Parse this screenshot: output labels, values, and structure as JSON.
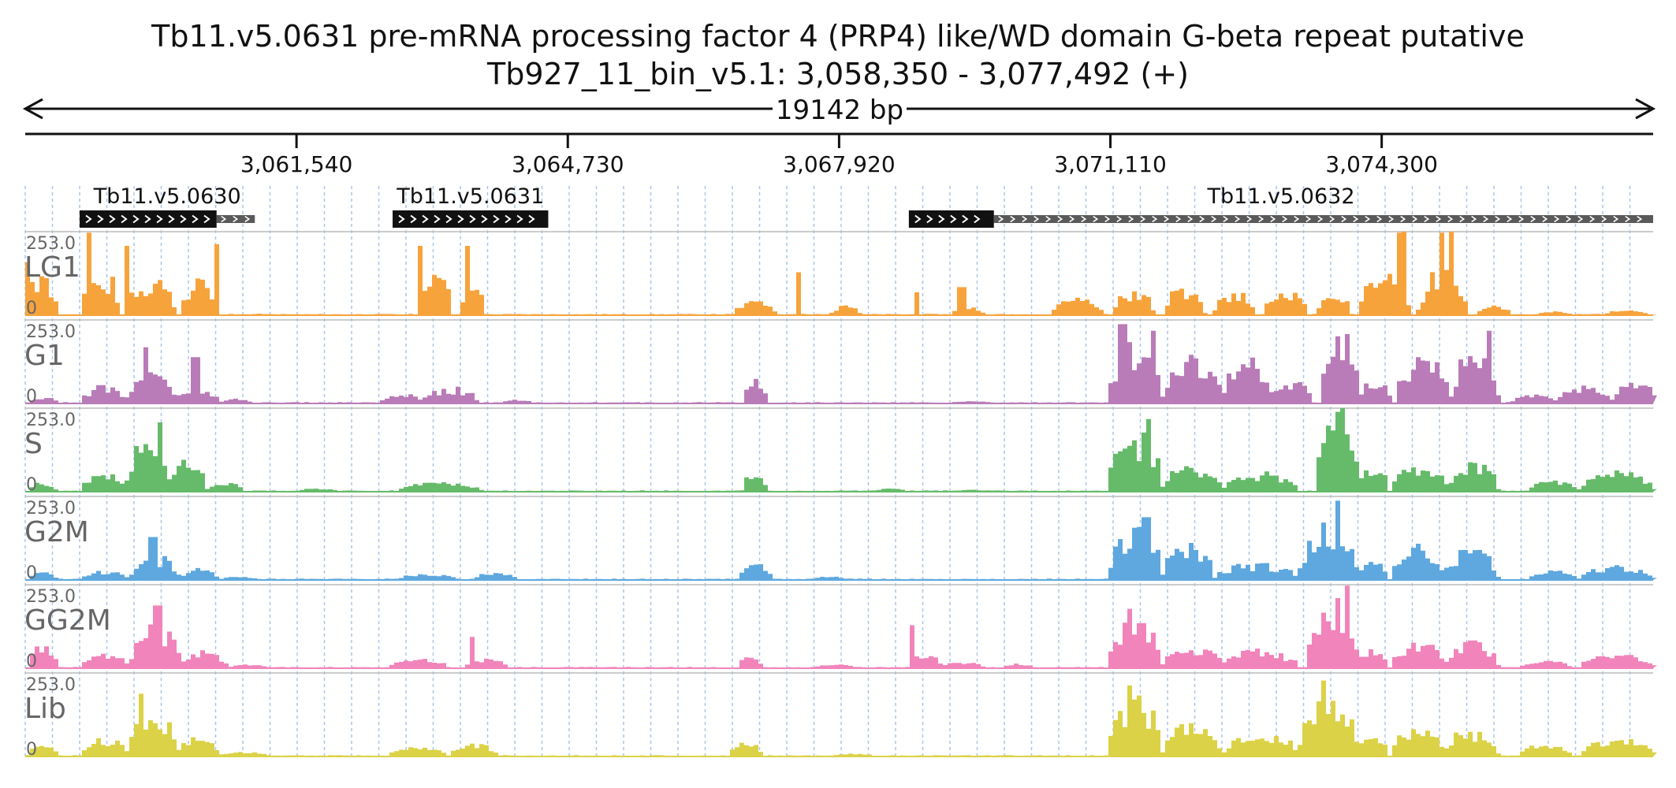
{
  "header": {
    "title": "Tb11.v5.0631  pre-mRNA processing factor 4 (PRP4) like/WD domain  G-beta repeat  putative",
    "locus": "Tb927_11_bin_v5.1: 3,058,350 - 3,077,492 (+)"
  },
  "chart_data": {
    "type": "area",
    "chromosome": "Tb927_11_bin_v5.1",
    "region": {
      "start": 3058350,
      "end": 3077492,
      "strand": "+"
    },
    "span_label": "19142 bp",
    "ticks": [
      {
        "pos": 3061540,
        "label": "3,061,540"
      },
      {
        "pos": 3064730,
        "label": "3,064,730"
      },
      {
        "pos": 3067920,
        "label": "3,067,920"
      },
      {
        "pos": 3071110,
        "label": "3,071,110"
      },
      {
        "pos": 3074300,
        "label": "3,074,300"
      }
    ],
    "genes": [
      {
        "name": "Tb11.v5.0630",
        "cds_start": 3058990,
        "cds_end": 3060600,
        "utr_end": 3061050,
        "strand": "+"
      },
      {
        "name": "Tb11.v5.0631",
        "cds_start": 3062670,
        "cds_end": 3064500,
        "strand": "+"
      },
      {
        "name": "Tb11.v5.0632",
        "cds_start": 3068740,
        "cds_end": 3069740,
        "utr_end": 3077492,
        "strand": "+"
      }
    ],
    "y_range": {
      "min_label": "0",
      "max_label": "253.0",
      "max": 253
    },
    "grid": true,
    "tracks": [
      {
        "name": "LG1",
        "color": "#f7a33c",
        "peaks": [
          [
            3058350,
            3058700,
            150,
            1.0
          ],
          [
            3058990,
            3059450,
            150,
            1.0
          ],
          [
            3059500,
            3060100,
            140,
            1.0
          ],
          [
            3060150,
            3060550,
            145,
            1.0
          ],
          [
            3061000,
            3061150,
            6,
            0.3
          ],
          [
            3062950,
            3063350,
            130,
            0.6
          ],
          [
            3063450,
            3063720,
            105,
            0.5
          ],
          [
            3066650,
            3067150,
            45,
            0.6
          ],
          [
            3067800,
            3068150,
            30,
            0.6
          ],
          [
            3068770,
            3068850,
            70,
            0.3
          ],
          [
            3069200,
            3069600,
            25,
            0.5
          ],
          [
            3070400,
            3071000,
            55,
            0.6
          ],
          [
            3071100,
            3071600,
            85,
            0.8
          ],
          [
            3071700,
            3072200,
            95,
            0.8
          ],
          [
            3072300,
            3072800,
            75,
            0.8
          ],
          [
            3072900,
            3073400,
            90,
            0.8
          ],
          [
            3073500,
            3073900,
            80,
            0.8
          ],
          [
            3074000,
            3074600,
            140,
            0.8
          ],
          [
            3074700,
            3075300,
            155,
            0.9
          ],
          [
            3075400,
            3075800,
            30,
            0.5
          ],
          [
            3076100,
            3076500,
            12,
            0.5
          ],
          [
            3076900,
            3077400,
            18,
            0.5
          ]
        ],
        "spikes": [
          [
            3058370,
            160
          ],
          [
            3059080,
            250
          ],
          [
            3059520,
            210
          ],
          [
            3060580,
            215
          ],
          [
            3062980,
            210
          ],
          [
            3063520,
            210
          ],
          [
            3067420,
            130
          ],
          [
            3069330,
            85
          ],
          [
            3074460,
            250
          ],
          [
            3074520,
            253
          ],
          [
            3074970,
            250
          ],
          [
            3075110,
            253
          ]
        ]
      },
      {
        "name": "G1",
        "color": "#b97cb8",
        "peaks": [
          [
            3058350,
            3058700,
            25,
            0.8
          ],
          [
            3058990,
            3059500,
            60,
            0.8
          ],
          [
            3059500,
            3060100,
            95,
            0.8
          ],
          [
            3060100,
            3060600,
            55,
            0.8
          ],
          [
            3060600,
            3061000,
            15,
            0.6
          ],
          [
            3062500,
            3063000,
            35,
            0.7
          ],
          [
            3063000,
            3063650,
            55,
            0.8
          ],
          [
            3063900,
            3064300,
            12,
            0.6
          ],
          [
            3066750,
            3067050,
            75,
            0.6
          ],
          [
            3069200,
            3069700,
            8,
            0.5
          ],
          [
            3071060,
            3071700,
            210,
            0.8
          ],
          [
            3071700,
            3072400,
            160,
            0.8
          ],
          [
            3072400,
            3073000,
            145,
            0.8
          ],
          [
            3073000,
            3073450,
            85,
            0.8
          ],
          [
            3073550,
            3074000,
            253,
            0.8
          ],
          [
            3074000,
            3074400,
            75,
            0.7
          ],
          [
            3074450,
            3075100,
            165,
            0.8
          ],
          [
            3075100,
            3075650,
            190,
            0.8
          ],
          [
            3075800,
            3076350,
            30,
            0.6
          ],
          [
            3076350,
            3077000,
            60,
            0.7
          ],
          [
            3077000,
            3077492,
            95,
            0.8
          ]
        ],
        "spikes": [
          [
            3059750,
            170
          ],
          [
            3060320,
            140
          ],
          [
            3071230,
            240
          ],
          [
            3071570,
            220
          ],
          [
            3075550,
            220
          ]
        ]
      },
      {
        "name": "S",
        "color": "#66bb6a",
        "peaks": [
          [
            3058350,
            3058700,
            30,
            0.7
          ],
          [
            3058990,
            3059500,
            70,
            0.8
          ],
          [
            3059500,
            3060000,
            160,
            0.8
          ],
          [
            3060000,
            3060450,
            110,
            0.7
          ],
          [
            3060450,
            3060900,
            30,
            0.6
          ],
          [
            3061500,
            3062000,
            10,
            0.5
          ],
          [
            3062700,
            3063700,
            30,
            0.6
          ],
          [
            3066750,
            3067050,
            60,
            0.6
          ],
          [
            3068300,
            3068700,
            10,
            0.5
          ],
          [
            3069200,
            3069700,
            6,
            0.5
          ],
          [
            3071060,
            3071700,
            190,
            0.8
          ],
          [
            3071700,
            3072400,
            90,
            0.8
          ],
          [
            3072400,
            3073300,
            65,
            0.8
          ],
          [
            3073500,
            3074000,
            245,
            0.8
          ],
          [
            3074000,
            3074350,
            85,
            0.7
          ],
          [
            3074400,
            3075050,
            90,
            0.8
          ],
          [
            3075050,
            3075650,
            100,
            0.8
          ],
          [
            3076000,
            3076600,
            35,
            0.6
          ],
          [
            3076600,
            3077492,
            65,
            0.7
          ]
        ],
        "spikes": [
          [
            3059920,
            210
          ],
          [
            3071540,
            220
          ],
          [
            3073820,
            253
          ]
        ]
      },
      {
        "name": "G2M",
        "color": "#5ea8df",
        "peaks": [
          [
            3058350,
            3058700,
            25,
            0.7
          ],
          [
            3058990,
            3059550,
            30,
            0.7
          ],
          [
            3059550,
            3060150,
            80,
            0.8
          ],
          [
            3060150,
            3060600,
            40,
            0.7
          ],
          [
            3060600,
            3061100,
            10,
            0.6
          ],
          [
            3062700,
            3063400,
            20,
            0.6
          ],
          [
            3063600,
            3064100,
            25,
            0.6
          ],
          [
            3066700,
            3067100,
            55,
            0.6
          ],
          [
            3067600,
            3068000,
            12,
            0.6
          ],
          [
            3071060,
            3071700,
            170,
            0.8
          ],
          [
            3071700,
            3072300,
            120,
            0.8
          ],
          [
            3072300,
            3073300,
            55,
            0.8
          ],
          [
            3073300,
            3074000,
            180,
            0.8
          ],
          [
            3074000,
            3074350,
            65,
            0.7
          ],
          [
            3074400,
            3075000,
            110,
            0.8
          ],
          [
            3075000,
            3075650,
            105,
            0.8
          ],
          [
            3076000,
            3076600,
            30,
            0.6
          ],
          [
            3076600,
            3077492,
            45,
            0.7
          ]
        ],
        "spikes": [
          [
            3059820,
            130
          ],
          [
            3071500,
            190
          ],
          [
            3073760,
            240
          ]
        ]
      },
      {
        "name": "GG2M",
        "color": "#f184bb",
        "peaks": [
          [
            3058350,
            3058700,
            85,
            0.8
          ],
          [
            3058990,
            3059550,
            55,
            0.8
          ],
          [
            3059550,
            3060150,
            145,
            0.8
          ],
          [
            3060150,
            3060700,
            55,
            0.7
          ],
          [
            3060700,
            3061200,
            12,
            0.6
          ],
          [
            3062600,
            3063300,
            30,
            0.6
          ],
          [
            3063500,
            3064000,
            30,
            0.6
          ],
          [
            3066700,
            3067000,
            35,
            0.6
          ],
          [
            3067600,
            3068100,
            12,
            0.6
          ],
          [
            3068700,
            3069100,
            45,
            0.6
          ],
          [
            3069100,
            3069600,
            20,
            0.6
          ],
          [
            3069800,
            3070200,
            15,
            0.6
          ],
          [
            3071060,
            3071700,
            165,
            0.8
          ],
          [
            3071700,
            3072400,
            80,
            0.8
          ],
          [
            3072400,
            3073300,
            60,
            0.8
          ],
          [
            3073400,
            3074000,
            220,
            0.8
          ],
          [
            3074000,
            3074350,
            60,
            0.7
          ],
          [
            3074400,
            3075000,
            90,
            0.8
          ],
          [
            3075000,
            3075650,
            85,
            0.8
          ],
          [
            3075900,
            3076500,
            25,
            0.6
          ],
          [
            3076600,
            3077492,
            45,
            0.7
          ]
        ],
        "spikes": [
          [
            3059880,
            190
          ],
          [
            3063580,
            95
          ],
          [
            3068750,
            130
          ],
          [
            3071300,
            180
          ],
          [
            3073850,
            250
          ]
        ]
      },
      {
        "name": "Lib",
        "color": "#dbd247",
        "peaks": [
          [
            3058350,
            3058700,
            40,
            0.7
          ],
          [
            3058990,
            3059550,
            60,
            0.8
          ],
          [
            3059550,
            3060100,
            150,
            0.8
          ],
          [
            3060100,
            3060600,
            60,
            0.7
          ],
          [
            3060600,
            3061200,
            15,
            0.6
          ],
          [
            3062600,
            3063300,
            30,
            0.6
          ],
          [
            3063300,
            3063900,
            40,
            0.7
          ],
          [
            3066600,
            3067000,
            45,
            0.6
          ],
          [
            3067800,
            3068300,
            10,
            0.6
          ],
          [
            3071060,
            3071700,
            195,
            0.8
          ],
          [
            3071700,
            3072400,
            110,
            0.8
          ],
          [
            3072400,
            3073300,
            80,
            0.8
          ],
          [
            3073300,
            3074000,
            200,
            0.8
          ],
          [
            3074000,
            3074350,
            70,
            0.7
          ],
          [
            3074400,
            3075000,
            110,
            0.8
          ],
          [
            3075000,
            3075650,
            90,
            0.8
          ],
          [
            3075900,
            3076500,
            40,
            0.6
          ],
          [
            3076600,
            3077492,
            60,
            0.7
          ]
        ],
        "spikes": [
          [
            3059700,
            190
          ],
          [
            3071320,
            215
          ],
          [
            3073610,
            230
          ]
        ]
      }
    ]
  }
}
